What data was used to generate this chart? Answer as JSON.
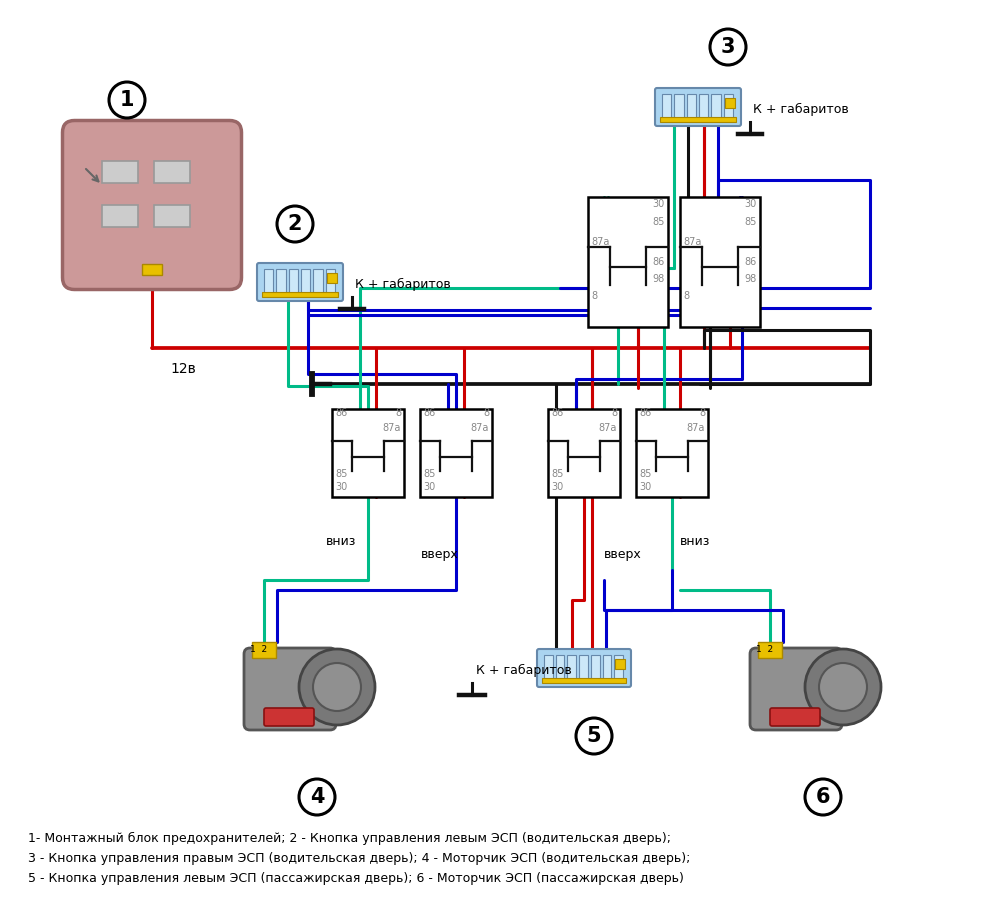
{
  "bg_color": "#ffffff",
  "caption_lines": [
    "1- Монтажный блок предохранителей; 2 - Кнопка управления левым ЭСП (водительская дверь);",
    "3 - Кнопка управления правым ЭСП (водительская дверь); 4 - Моторчик ЭСП (водительская дверь);",
    "5 - Кнопка управления левым ЭСП (пассажирская дверь); 6 - Моторчик ЭСП (пассажирская дверь)"
  ],
  "red": "#cc0000",
  "black": "#111111",
  "blue": "#0000cc",
  "green": "#009944",
  "cyan": "#00bb88",
  "gray": "#888888"
}
